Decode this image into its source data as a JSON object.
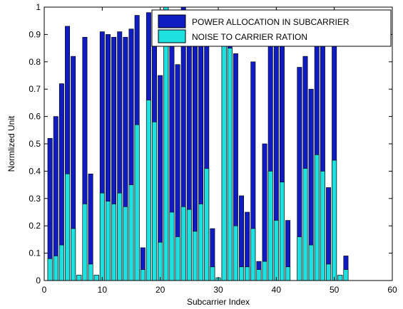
{
  "chart_data": {
    "type": "bar",
    "xlabel": "Subcarrier Index",
    "ylabel": "Normlized Unit",
    "xlim": [
      0,
      60
    ],
    "ylim": [
      0,
      1
    ],
    "x_ticks": [
      "0",
      "10",
      "20",
      "30",
      "40",
      "50",
      "60"
    ],
    "y_ticks": [
      "0",
      "0.1",
      "0.2",
      "0.3",
      "0.4",
      "0.5",
      "0.6",
      "0.7",
      "0.8",
      "0.9",
      "1"
    ],
    "legend_position": "top-right",
    "x": [
      1,
      2,
      3,
      4,
      5,
      6,
      7,
      8,
      9,
      10,
      11,
      12,
      13,
      14,
      15,
      16,
      17,
      18,
      19,
      20,
      21,
      22,
      23,
      24,
      25,
      26,
      27,
      28,
      29,
      30,
      31,
      32,
      33,
      34,
      35,
      36,
      37,
      38,
      39,
      40,
      41,
      42,
      43,
      44,
      45,
      46,
      47,
      48,
      49,
      50,
      51,
      52
    ],
    "series": [
      {
        "name": "POWER ALLOCATION IN SUBCARRIER",
        "color": "#0f1cc2",
        "values": [
          0.52,
          0.6,
          0.72,
          0.93,
          0.82,
          0.02,
          0.89,
          0.39,
          0.02,
          0.91,
          0.9,
          0.89,
          0.91,
          0.89,
          0.92,
          0.97,
          0.12,
          0.98,
          0.98,
          0.75,
          1.0,
          0.96,
          0.79,
          1.0,
          0.98,
          0.99,
          0.98,
          0.99,
          0.19,
          0.01,
          0.99,
          0.99,
          0.83,
          0.31,
          0.25,
          0.8,
          0.07,
          0.5,
          0.88,
          0.98,
          0.9,
          0.22,
          0.0,
          0.78,
          0.82,
          0.7,
          0.93,
          0.98,
          0.34,
          0.98,
          0.02,
          0.09
        ]
      },
      {
        "name": "NOISE TO CARRIER RATION",
        "color": "#1de1e1",
        "values": [
          0.08,
          0.09,
          0.13,
          0.39,
          0.19,
          0.02,
          0.28,
          0.06,
          0.02,
          0.32,
          0.29,
          0.28,
          0.32,
          0.27,
          0.35,
          0.57,
          0.04,
          0.66,
          0.58,
          0.14,
          1.0,
          0.25,
          0.16,
          0.27,
          0.26,
          0.18,
          0.28,
          0.41,
          0.05,
          0.01,
          0.92,
          0.85,
          0.2,
          0.05,
          0.05,
          0.19,
          0.04,
          0.07,
          0.4,
          0.22,
          0.36,
          0.05,
          0.0,
          0.16,
          0.41,
          0.13,
          0.46,
          0.4,
          0.06,
          0.44,
          0.02,
          0.04
        ]
      }
    ]
  }
}
